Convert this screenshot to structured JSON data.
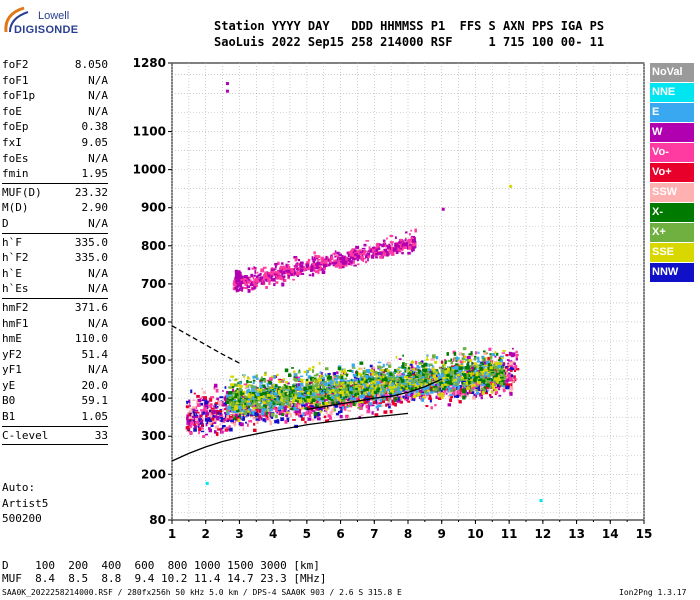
{
  "logo": {
    "line1": "Lowell",
    "line2": "DIGISONDE"
  },
  "header": {
    "line1": "Station YYYY DAY   DDD HHMMSS P1  FFS S AXN PPS IGA PS",
    "line2": "SaoLuis 2022 Sep15 258 214000 RSF     1 715 100 00- 11"
  },
  "params": {
    "group1": [
      {
        "k": "foF2",
        "v": "8.050"
      },
      {
        "k": "foF1",
        "v": "N/A"
      },
      {
        "k": "foF1p",
        "v": "N/A"
      },
      {
        "k": "foE",
        "v": "N/A"
      },
      {
        "k": "foEp",
        "v": "0.38"
      },
      {
        "k": "fxI",
        "v": "9.05"
      },
      {
        "k": "foEs",
        "v": "N/A"
      },
      {
        "k": "fmin",
        "v": "1.95"
      }
    ],
    "group2": [
      {
        "k": "MUF(D)",
        "v": "23.32"
      },
      {
        "k": "M(D)",
        "v": "2.90"
      },
      {
        "k": "D",
        "v": "N/A"
      }
    ],
    "group3": [
      {
        "k": "h`F",
        "v": "335.0"
      },
      {
        "k": "h`F2",
        "v": "335.0"
      },
      {
        "k": "h`E",
        "v": "N/A"
      },
      {
        "k": "h`Es",
        "v": "N/A"
      }
    ],
    "group4": [
      {
        "k": "hmF2",
        "v": "371.6"
      },
      {
        "k": "hmF1",
        "v": "N/A"
      },
      {
        "k": "hmE",
        "v": "110.0"
      },
      {
        "k": "yF2",
        "v": "51.4"
      },
      {
        "k": "yF1",
        "v": "N/A"
      },
      {
        "k": "yE",
        "v": "20.0"
      },
      {
        "k": "B0",
        "v": "59.1"
      },
      {
        "k": "B1",
        "v": "1.05"
      }
    ],
    "group5": [
      {
        "k": "C-level",
        "v": "33"
      }
    ]
  },
  "auto": {
    "line1": "Auto:",
    "line2": "Artist5",
    "line3": "500200"
  },
  "legend": [
    {
      "label": "NoVal",
      "color": "#9a9a9a"
    },
    {
      "label": "NNE",
      "color": "#00e5f0"
    },
    {
      "label": "E",
      "color": "#3aa8f0"
    },
    {
      "label": "W",
      "color": "#b000b0"
    },
    {
      "label": "Vo-",
      "color": "#ff3aa0"
    },
    {
      "label": "Vo+",
      "color": "#e8002a"
    },
    {
      "label": "SSW",
      "color": "#ffb0b0"
    },
    {
      "label": "X-",
      "color": "#007a00"
    },
    {
      "label": "X+",
      "color": "#70b040"
    },
    {
      "label": "SSE",
      "color": "#d8d800"
    },
    {
      "label": "NNW",
      "color": "#1010c8"
    }
  ],
  "dmuf": {
    "line1": "D    100  200  400  600  800 1000 1500 3000 [km]",
    "line2": "MUF  8.4  8.5  8.8  9.4 10.2 11.4 14.7 23.3 [MHz]"
  },
  "footer": {
    "left": "SAA0K_2022258214000.RSF / 280fx256h 50 kHz 5.0 km / DPS-4 SAA0K 903 / 2.6 S 315.8 E",
    "right": "Ion2Png 1.3.17"
  },
  "chart_data": {
    "type": "scatter",
    "xlim": [
      1,
      15
    ],
    "ylim": [
      80,
      1280
    ],
    "x_ticks": [
      1,
      2,
      3,
      4,
      5,
      6,
      7,
      8,
      9,
      10,
      11,
      12,
      13,
      14,
      15
    ],
    "y_ticks": [
      80,
      200,
      300,
      400,
      500,
      600,
      700,
      800,
      900,
      1000,
      1100,
      1280
    ],
    "grid": true,
    "clusters": [
      {
        "name": "F2 O-trace",
        "x_range": [
          1.4,
          11.2
        ],
        "y_center": [
          350,
          460
        ],
        "y_spread": 45,
        "colors": [
          "#ff3aa0",
          "#b000b0",
          "#1010c8",
          "#e8002a",
          "#ffb0b0"
        ]
      },
      {
        "name": "F2 X-trace",
        "x_range": [
          2.6,
          10.8
        ],
        "y_center": [
          390,
          470
        ],
        "y_spread": 40,
        "colors": [
          "#007a00",
          "#70b040",
          "#d8d800",
          "#3aa8f0"
        ]
      },
      {
        "name": "second hop",
        "x_range": [
          2.8,
          8.2
        ],
        "y_center": [
          700,
          810
        ],
        "y_spread": 20,
        "colors": [
          "#b000b0",
          "#ff3aa0"
        ]
      }
    ],
    "profile_line": {
      "x": [
        1.0,
        1.5,
        2.0,
        2.5,
        3.0,
        3.5,
        4.0,
        4.5,
        5.0,
        5.5,
        6.0,
        6.5,
        7.0,
        7.5,
        8.0
      ],
      "y": [
        235,
        255,
        272,
        286,
        297,
        306,
        315,
        322,
        330,
        336,
        342,
        347,
        351,
        355,
        360
      ]
    },
    "trace_line": {
      "x": [
        5.0,
        5.5,
        6.0,
        6.5,
        7.0,
        7.5,
        8.0,
        8.5,
        9.0
      ],
      "y": [
        370,
        378,
        385,
        392,
        400,
        405,
        415,
        430,
        450
      ]
    },
    "dashed_line": {
      "x": [
        1.0,
        1.5,
        2.0,
        2.5,
        3.0
      ],
      "y": [
        590,
        565,
        540,
        515,
        492
      ]
    }
  }
}
